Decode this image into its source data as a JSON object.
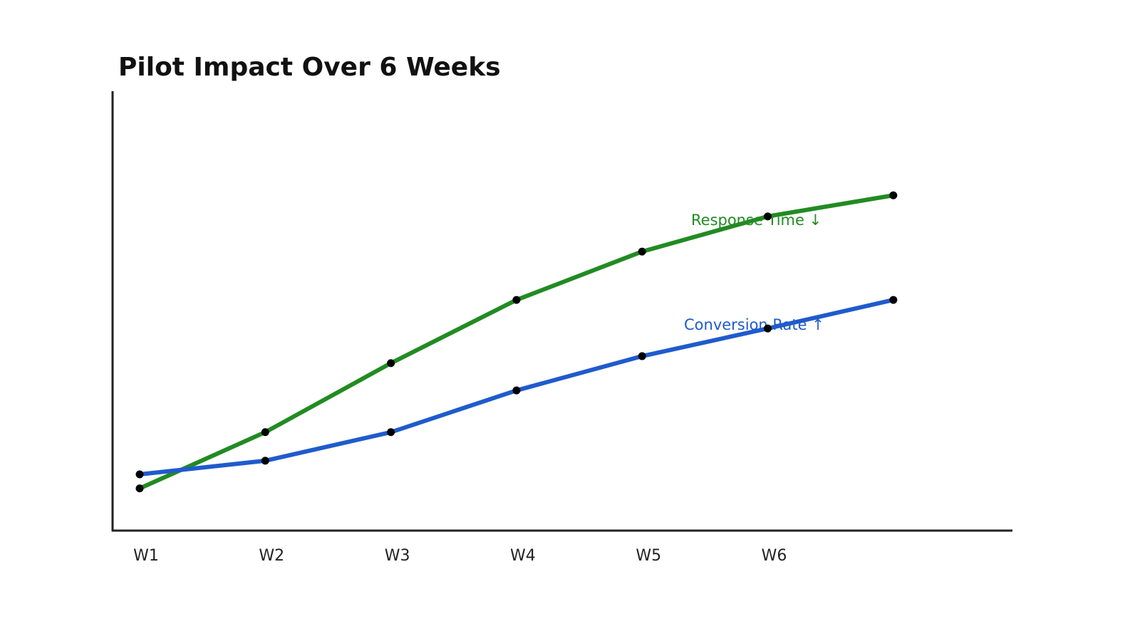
{
  "chart_data": {
    "type": "line",
    "title": "Pilot Impact Over 6 Weeks",
    "xlabel": "",
    "ylabel": "",
    "categories": [
      "W1",
      "W2",
      "W3",
      "W4",
      "W5",
      "W6",
      ""
    ],
    "tick_labels": [
      "W1",
      "W2",
      "W3",
      "W4",
      "W5",
      "W6"
    ],
    "ylim": [
      0,
      100
    ],
    "y_ticks_shown": false,
    "grid": false,
    "legend": "none",
    "series": [
      {
        "name": "Response Time ↓",
        "color": "#228b22",
        "values": [
          9.6,
          22.4,
          38.1,
          52.5,
          63.5,
          71.5,
          76.3
        ]
      },
      {
        "name": "Conversion Rate ↑",
        "color": "#1f5bcc",
        "values": [
          12.8,
          15.9,
          22.4,
          31.9,
          39.7,
          46.0,
          52.5
        ]
      }
    ],
    "marker_color": "#000000"
  }
}
